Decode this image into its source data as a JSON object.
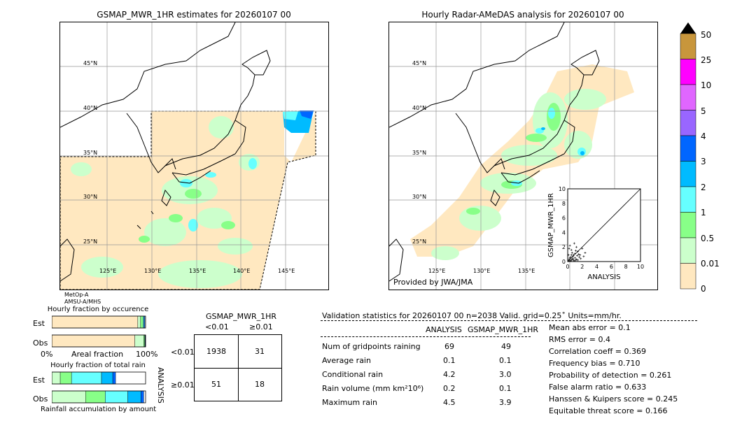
{
  "left_map": {
    "title": "GSMAP_MWR_1HR estimates for 20260107 00",
    "lat_labels": [
      "45°N",
      "40°N",
      "35°N",
      "30°N",
      "25°N"
    ],
    "lon_labels": [
      "125°E",
      "130°E",
      "135°E",
      "140°E",
      "145°E"
    ],
    "satellite_note_1": "MetOp-A",
    "satellite_note_2": "AMSU-A/MHS"
  },
  "right_map": {
    "title": "Hourly Radar-AMeDAS analysis for 20260107 00",
    "lat_labels": [
      "45°N",
      "40°N",
      "35°N",
      "30°N",
      "25°N"
    ],
    "lon_labels": [
      "125°E",
      "130°E",
      "135°E"
    ],
    "provider": "Provided by JWA/JMA"
  },
  "colorbar": {
    "labels": [
      "50",
      "25",
      "10",
      "5",
      "4",
      "3",
      "2",
      "1",
      "0.5",
      "0.01",
      "0"
    ],
    "colors": [
      "#c8963c",
      "#ff00ff",
      "#e066ff",
      "#9966ff",
      "#0066ff",
      "#00bbff",
      "#66ffff",
      "#88ff88",
      "#ccffcc",
      "#ffe8c0"
    ]
  },
  "chart_data": [
    {
      "type": "scatter",
      "title": "",
      "xlabel": "ANALYSIS",
      "ylabel": "GSMAP_MWR_1HR",
      "xlim": [
        0,
        10
      ],
      "ylim": [
        0,
        10
      ],
      "x_ticks": [
        "0",
        "2",
        "4",
        "6",
        "8",
        "10"
      ],
      "y_ticks": [
        "0",
        "2",
        "4",
        "6",
        "8",
        "10"
      ],
      "points": [
        [
          0.1,
          0.1
        ],
        [
          0.2,
          0.3
        ],
        [
          0.3,
          0.1
        ],
        [
          0.4,
          0.6
        ],
        [
          0.5,
          0.2
        ],
        [
          0.6,
          1.2
        ],
        [
          0.7,
          0.4
        ],
        [
          0.8,
          0.9
        ],
        [
          0.9,
          0.1
        ],
        [
          1.0,
          0.5
        ],
        [
          1.1,
          1.5
        ],
        [
          1.2,
          0.3
        ],
        [
          1.3,
          0.8
        ],
        [
          1.4,
          0.2
        ],
        [
          1.5,
          1.0
        ],
        [
          1.6,
          0.6
        ],
        [
          1.8,
          0.4
        ],
        [
          2.0,
          1.8
        ],
        [
          2.2,
          0.7
        ],
        [
          0.2,
          1.8
        ],
        [
          0.3,
          2.2
        ],
        [
          0.5,
          1.6
        ],
        [
          0.8,
          0.2
        ],
        [
          1.0,
          1.1
        ],
        [
          0.1,
          0.9
        ],
        [
          0.4,
          0.1
        ],
        [
          0.6,
          0.3
        ],
        [
          1.2,
          2.0
        ],
        [
          1.4,
          1.4
        ],
        [
          0.9,
          2.5
        ],
        [
          1.7,
          0.9
        ],
        [
          2.4,
          1.2
        ],
        [
          0.3,
          0.5
        ],
        [
          0.7,
          0.7
        ],
        [
          1.1,
          0.2
        ],
        [
          0.5,
          0.9
        ]
      ]
    },
    {
      "type": "bar",
      "title": "Hourly fraction by occurence",
      "categories": [
        "Est",
        "Obs"
      ],
      "x_ticks": [
        "0%",
        "100%"
      ],
      "xlabel": "Areal fraction",
      "series": [
        {
          "values": [
            0.917,
            0.885
          ]
        },
        {
          "values": [
            0.03,
            0.095
          ]
        },
        {
          "values": [
            0.025,
            0.01
          ]
        },
        {
          "values": [
            0.012,
            0.005
          ]
        },
        {
          "values": [
            0.008,
            0.005
          ]
        }
      ]
    },
    {
      "type": "bar",
      "title": "Hourly fraction of total rain",
      "categories": [
        "Est",
        "Obs"
      ],
      "xlabel": "Rainfall accumulation by amount",
      "series": [
        {
          "values": [
            0.09,
            0.36
          ]
        },
        {
          "values": [
            0.12,
            0.21
          ]
        },
        {
          "values": [
            0.32,
            0.24
          ]
        },
        {
          "values": [
            0.12,
            0.14
          ]
        },
        {
          "values": [
            0.03,
            0.03
          ]
        }
      ]
    }
  ],
  "contingency": {
    "header": "GSMAP_MWR_1HR",
    "col_lt": "<0.01",
    "col_ge": "≥0.01",
    "row_axis": "ANALYSIS",
    "row_lt": "<0.01",
    "row_ge": "≥0.01",
    "cells": [
      "1938",
      "31",
      "51",
      "18"
    ]
  },
  "validation": {
    "header": "Validation statistics for 20260107 00  n=2038 Valid. grid=0.25˚ Units=mm/hr.",
    "col_analysis": "ANALYSIS",
    "col_gsmap": "GSMAP_MWR_1HR",
    "rows": [
      {
        "label": "Num of gridpoints raining",
        "a": "69",
        "g": "49"
      },
      {
        "label": "Average rain",
        "a": "0.1",
        "g": "0.1"
      },
      {
        "label": "Conditional rain",
        "a": "4.2",
        "g": "3.0"
      },
      {
        "label": "Rain volume (mm km²10⁶)",
        "a": "0.2",
        "g": "0.1"
      },
      {
        "label": "Maximum rain",
        "a": "4.5",
        "g": "3.9"
      }
    ],
    "scores": [
      "Mean abs error =    0.1",
      "RMS error =    0.4",
      "Correlation coeff =  0.369",
      "Frequency bias =  0.710",
      "Probability of detection =  0.261",
      "False alarm ratio =  0.633",
      "Hanssen & Kuipers score =  0.245",
      "Equitable threat score =  0.166"
    ]
  }
}
